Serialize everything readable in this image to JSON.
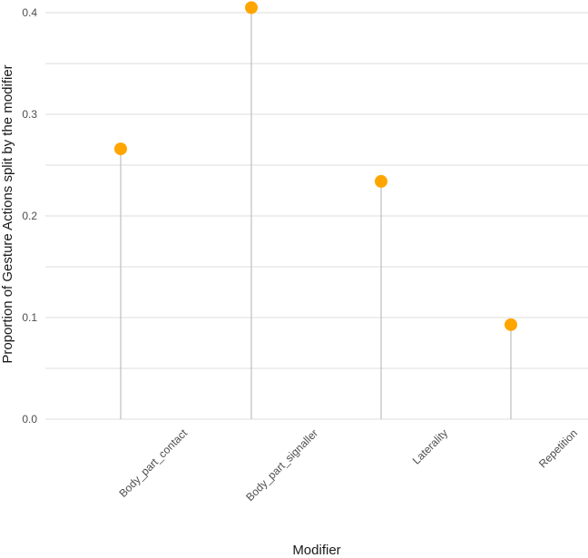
{
  "chart_data": {
    "type": "lollipop",
    "categories": [
      "Body_part_contact",
      "Body_part_signaller",
      "Laterality",
      "Repetition"
    ],
    "values": [
      0.266,
      0.405,
      0.234,
      0.093
    ],
    "xlabel": "Modifier",
    "ylabel": "Proportion of Gesture Actions split by the modifier",
    "ylim": [
      0,
      0.4
    ],
    "yticks": [
      0.0,
      0.1,
      0.2,
      0.3,
      0.4
    ],
    "ytick_labels": [
      "0.0",
      "0.1",
      "0.2",
      "0.3",
      "0.4"
    ],
    "grid": true,
    "point_color": "#FFA500",
    "stem_color": "#BEBEBE",
    "grid_color": "#DEDEDE"
  }
}
